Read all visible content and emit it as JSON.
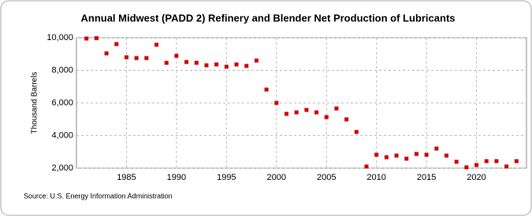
{
  "chart_data": {
    "type": "scatter",
    "title": "Annual Midwest (PADD 2) Refinery and Blender Net Production of Lubricants",
    "y_label": "Thousand Barrels",
    "source": "Source: U.S. Energy Information Administration",
    "color": "#cc0000",
    "grid": true,
    "x": [
      1981,
      1982,
      1983,
      1984,
      1985,
      1986,
      1987,
      1988,
      1989,
      1990,
      1991,
      1992,
      1993,
      1994,
      1995,
      1996,
      1997,
      1998,
      1999,
      2000,
      2001,
      2002,
      2003,
      2004,
      2005,
      2006,
      2007,
      2008,
      2009,
      2010,
      2011,
      2012,
      2013,
      2014,
      2015,
      2016,
      2017,
      2018,
      2019,
      2020,
      2021,
      2022,
      2023,
      2024
    ],
    "values": [
      9950,
      9970,
      9040,
      9610,
      8800,
      8750,
      8750,
      9570,
      8460,
      8890,
      8510,
      8460,
      8310,
      8360,
      8220,
      8360,
      8270,
      8600,
      6820,
      6000,
      5330,
      5420,
      5570,
      5420,
      5130,
      5660,
      4990,
      4220,
      2100,
      2820,
      2670,
      2770,
      2580,
      2870,
      2820,
      3200,
      2770,
      2390,
      2050,
      2190,
      2430,
      2430,
      2100,
      2430
    ],
    "xlim": [
      1980,
      2025
    ],
    "xticks": [
      1985,
      1990,
      1995,
      2000,
      2005,
      2010,
      2015,
      2020
    ],
    "ylim": [
      2000,
      10000
    ],
    "yticks": [
      {
        "value": 2000,
        "label": "2,000"
      },
      {
        "value": 4000,
        "label": "4,000"
      },
      {
        "value": 6000,
        "label": "6,000"
      },
      {
        "value": 8000,
        "label": "8,000"
      },
      {
        "value": 10000,
        "label": "10,000"
      }
    ]
  }
}
